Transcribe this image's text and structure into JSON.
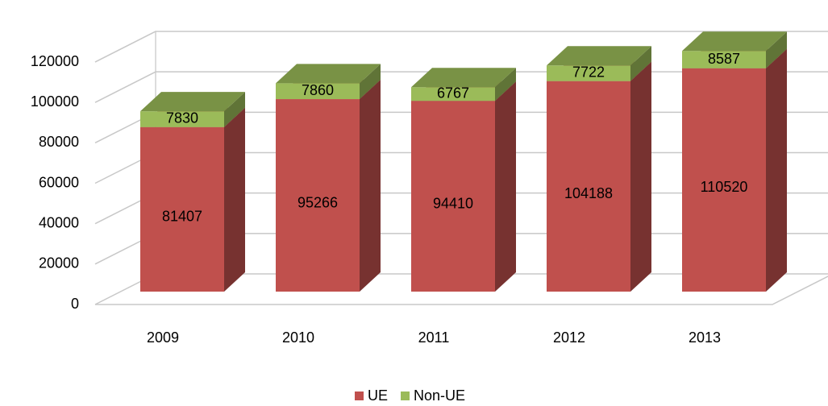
{
  "chart_data": {
    "type": "bar3d_stacked",
    "categories": [
      "2009",
      "2010",
      "2011",
      "2012",
      "2013"
    ],
    "series": [
      {
        "name": "UE",
        "color": "#c0504d",
        "values": [
          81407,
          95266,
          94410,
          104188,
          110520
        ]
      },
      {
        "name": "Non-UE",
        "color": "#9bbb59",
        "values": [
          7830,
          7860,
          6767,
          7722,
          8587
        ]
      }
    ],
    "ylim": [
      0,
      120000
    ],
    "yticks": [
      0,
      20000,
      40000,
      60000,
      80000,
      100000,
      120000
    ],
    "grid": true,
    "legend": "bottom"
  }
}
